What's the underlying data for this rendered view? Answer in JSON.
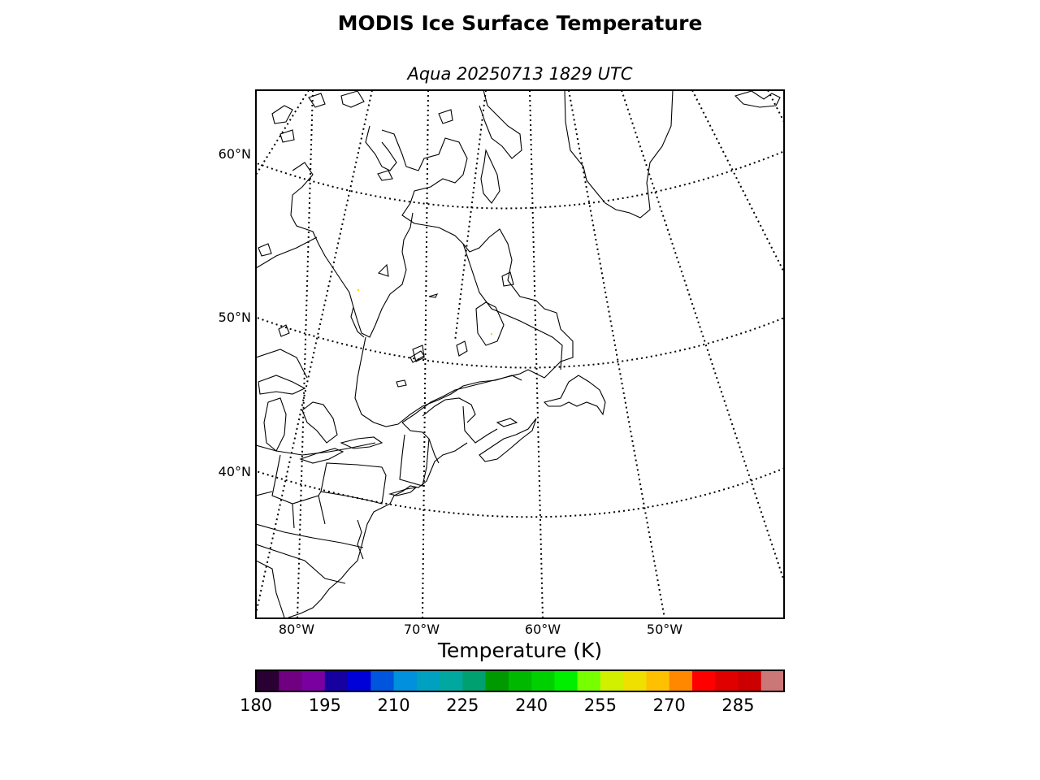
{
  "title": "MODIS Ice Surface Temperature",
  "subtitle": "Aqua 20250713 1829 UTC",
  "map": {
    "projection": "polar-stereographic",
    "parallels": [
      {
        "label": "60°N",
        "value": 60
      },
      {
        "label": "50°N",
        "value": 50
      },
      {
        "label": "40°N",
        "value": 40
      }
    ],
    "meridians": [
      {
        "label": "80°W",
        "value": -80
      },
      {
        "label": "70°W",
        "value": -70
      },
      {
        "label": "60°W",
        "value": -60
      },
      {
        "label": "50°W",
        "value": -50
      }
    ],
    "gridline_style": "dotted",
    "coastline_color": "#000000",
    "background": "#ffffff"
  },
  "colorbar": {
    "label": "Temperature (K)",
    "min": 180,
    "max": 295,
    "ticks": [
      "180",
      "195",
      "210",
      "225",
      "240",
      "255",
      "270",
      "285"
    ],
    "colors": [
      "#2a0033",
      "#700080",
      "#7a00a0",
      "#1600a0",
      "#0000d8",
      "#0055dd",
      "#0090dd",
      "#00a0c0",
      "#00a8a0",
      "#00a070",
      "#009a00",
      "#00b800",
      "#00d000",
      "#00ee00",
      "#77ff00",
      "#d0f000",
      "#f0e000",
      "#ffc000",
      "#ff8800",
      "#ff0000",
      "#e00000",
      "#cc0000",
      "#cc7777"
    ]
  }
}
